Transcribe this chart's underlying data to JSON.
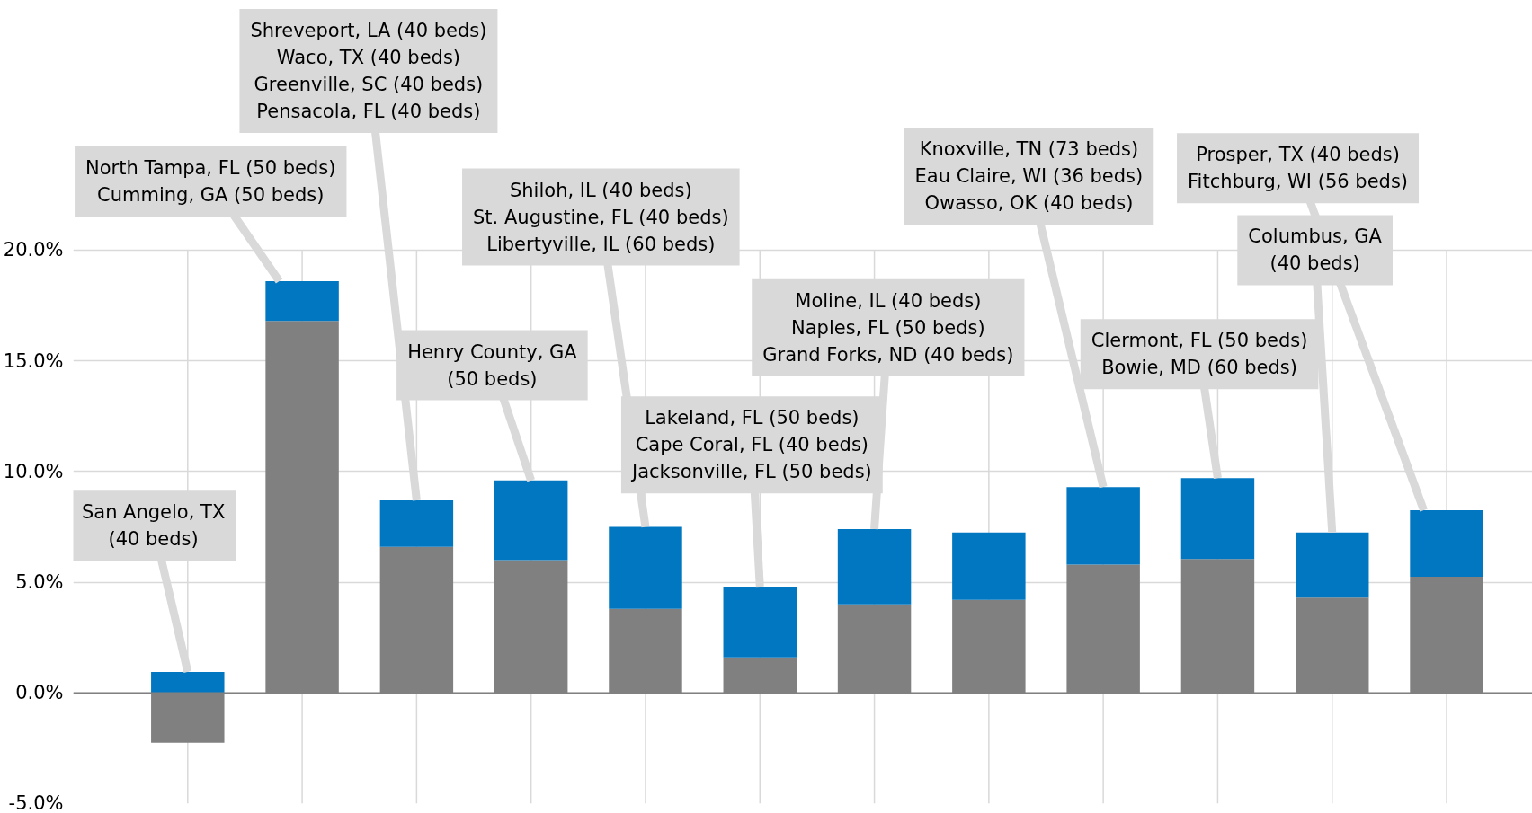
{
  "chart_data": {
    "type": "bar",
    "stacked": true,
    "categories": [
      null,
      null,
      null,
      null,
      null,
      null,
      null,
      null,
      null,
      null,
      null,
      null
    ],
    "series": [
      {
        "color": "#808080",
        "values": [
          -2.25,
          16.8,
          6.6,
          6.0,
          3.8,
          1.6,
          4.0,
          4.2,
          5.8,
          6.05,
          4.3,
          5.25
        ]
      },
      {
        "color": "#0077c0",
        "values": [
          0.95,
          1.8,
          2.1,
          3.6,
          3.7,
          3.2,
          3.4,
          3.05,
          3.5,
          3.65,
          2.95,
          3.0
        ]
      }
    ],
    "ylim": [
      -5,
      20
    ],
    "yticks": [
      {
        "value": -5,
        "label": "-5.0%"
      },
      {
        "value": 0,
        "label": "0.0%"
      },
      {
        "value": 5,
        "label": "5.0%"
      },
      {
        "value": 10,
        "label": "10.0%"
      },
      {
        "value": 15,
        "label": "15.0%"
      },
      {
        "value": 20,
        "label": "20.0%"
      }
    ],
    "tick_labels": "y",
    "grid": true,
    "annotations": [
      "San Angelo, TX\n(40 beds)",
      "North Tampa, FL (50 beds)\nCumming, GA (50 beds)",
      "Shreveport, LA (40 beds)\nWaco, TX (40 beds)\nGreenville, SC (40 beds)\nPensacola, FL (40 beds)",
      "Henry County, GA\n(50 beds)",
      "Shiloh, IL (40 beds)\nSt. Augustine, FL (40 beds)\nLibertyville, IL (60 beds)",
      "Lakeland, FL (50 beds)\nCape Coral, FL (40 beds)\nJacksonville, FL (50 beds)",
      "Moline, IL (40 beds)\nNaples, FL (50 beds)\nGrand Forks, ND (40 beds)",
      "Knoxville, TN (73 beds)\nEau Claire, WI (36 beds)\nOwasso, OK (40 beds)",
      "Clermont, FL (50 beds)\nBowie, MD (60 beds)",
      "Columbus, GA\n(40 beds)",
      "Prosper, TX (40 beds)\nFitchburg, WI (56 beds)"
    ]
  }
}
